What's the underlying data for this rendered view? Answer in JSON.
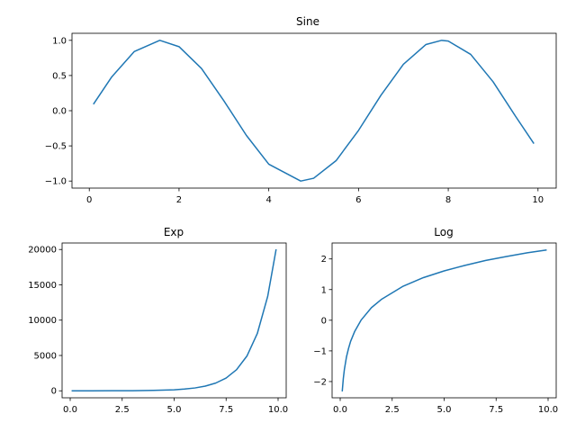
{
  "figure": {
    "background": "#ffffff"
  },
  "chart_data": [
    {
      "type": "line",
      "title": "Sine",
      "xlabel": "",
      "ylabel": "",
      "xlim": [
        -0.3855,
        10.4055
      ],
      "ylim": [
        -1.1,
        1.1
      ],
      "xticks": [
        0,
        2,
        4,
        6,
        8,
        10
      ],
      "xtick_labels": [
        "0",
        "2",
        "4",
        "6",
        "8",
        "10"
      ],
      "yticks": [
        -1.0,
        -0.5,
        0.0,
        0.5,
        1.0
      ],
      "ytick_labels": [
        "−1.0",
        "−0.5",
        "0.0",
        "0.5",
        "1.0"
      ],
      "grid": false,
      "series": [
        {
          "color": "#1f77b4",
          "x": [
            0.1,
            0.5,
            1.0,
            1.5708,
            2.0,
            2.5,
            3.0,
            3.5,
            4.0,
            4.7124,
            5.0,
            5.5,
            6.0,
            6.5,
            7.0,
            7.5,
            7.854,
            8.0,
            8.5,
            9.0,
            9.5,
            9.9
          ],
          "y": [
            0.1,
            0.48,
            0.84,
            1.0,
            0.91,
            0.6,
            0.14,
            -0.35,
            -0.76,
            -1.0,
            -0.96,
            -0.71,
            -0.28,
            0.22,
            0.66,
            0.94,
            1.0,
            0.99,
            0.8,
            0.41,
            -0.08,
            -0.46
          ]
        }
      ]
    },
    {
      "type": "line",
      "title": "Exp",
      "xlabel": "",
      "ylabel": "",
      "xlim": [
        -0.39,
        10.39
      ],
      "ylim": [
        -990,
        20920
      ],
      "xticks": [
        0,
        2.5,
        5.0,
        7.5,
        10.0
      ],
      "xtick_labels": [
        "0.0",
        "2.5",
        "5.0",
        "7.5",
        "10.0"
      ],
      "yticks": [
        0,
        5000,
        10000,
        15000,
        20000
      ],
      "ytick_labels": [
        "0",
        "5000",
        "10000",
        "15000",
        "20000"
      ],
      "grid": false,
      "series": [
        {
          "color": "#1f77b4",
          "x": [
            0.1,
            1.0,
            2.0,
            3.0,
            4.0,
            5.0,
            5.5,
            6.0,
            6.5,
            7.0,
            7.5,
            8.0,
            8.5,
            9.0,
            9.5,
            9.9
          ],
          "y": [
            1.1,
            2.7,
            7.4,
            20,
            55,
            148,
            245,
            403,
            665,
            1097,
            1808,
            2981,
            4915,
            8103,
            13360,
            19930
          ]
        }
      ]
    },
    {
      "type": "line",
      "title": "Log",
      "xlabel": "",
      "ylabel": "",
      "xlim": [
        -0.39,
        10.39
      ],
      "ylim": [
        -2.53,
        2.52
      ],
      "xticks": [
        0,
        2.5,
        5.0,
        7.5,
        10.0
      ],
      "xtick_labels": [
        "0.0",
        "2.5",
        "5.0",
        "7.5",
        "10.0"
      ],
      "yticks": [
        -2,
        -1,
        0,
        1,
        2
      ],
      "ytick_labels": [
        "−2",
        "−1",
        "0",
        "1",
        "2"
      ],
      "grid": false,
      "series": [
        {
          "color": "#1f77b4",
          "x": [
            0.1,
            0.15,
            0.2,
            0.3,
            0.4,
            0.5,
            0.7,
            1.0,
            1.5,
            2.0,
            3.0,
            4.0,
            5.0,
            6.0,
            7.0,
            8.0,
            9.0,
            9.9
          ],
          "y": [
            -2.3,
            -1.9,
            -1.61,
            -1.2,
            -0.92,
            -0.69,
            -0.36,
            0.0,
            0.41,
            0.69,
            1.1,
            1.39,
            1.61,
            1.79,
            1.95,
            2.08,
            2.2,
            2.29
          ]
        }
      ]
    }
  ]
}
